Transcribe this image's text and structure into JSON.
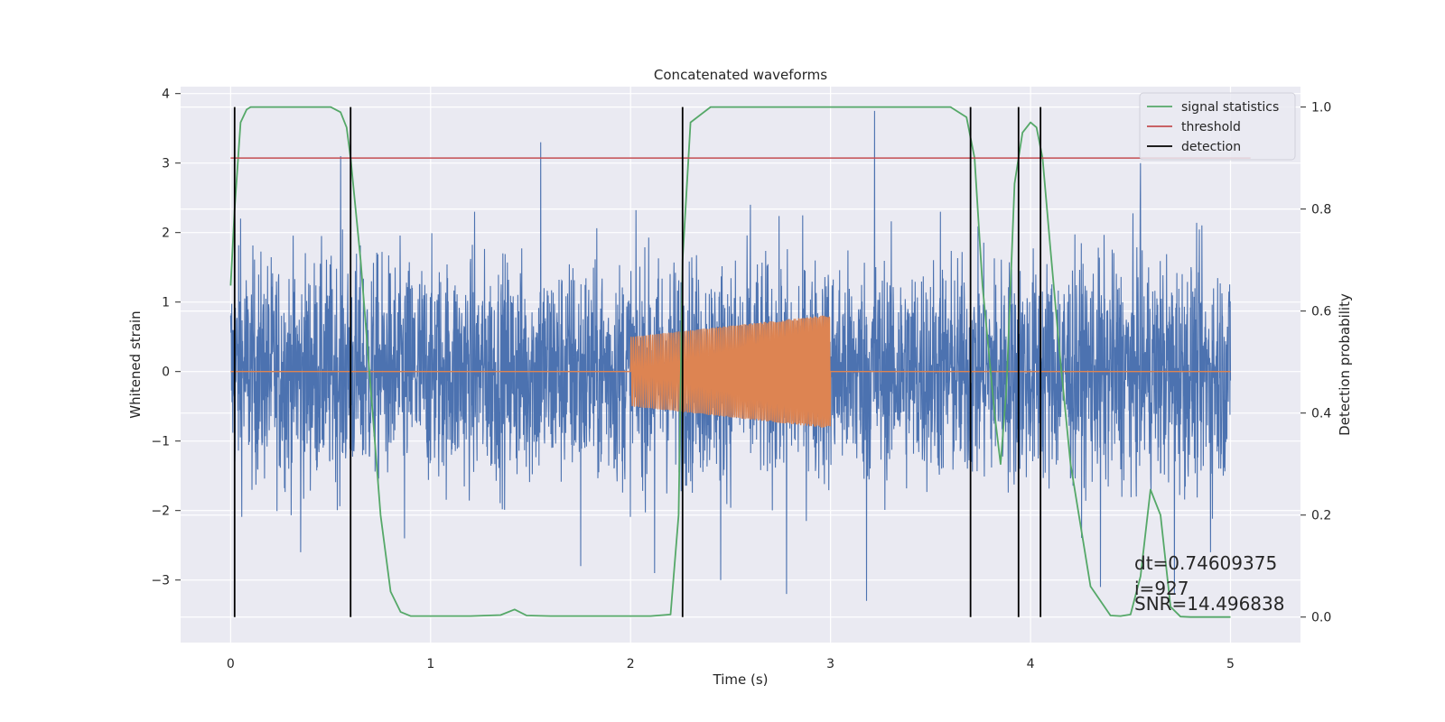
{
  "chart_data": {
    "type": "line",
    "title": "Concatenated waveforms",
    "xlabel": "Time (s)",
    "ylabel": "Whitened strain",
    "y2label": "Detection probability",
    "xlim": [
      -0.25,
      5.35
    ],
    "ylim": [
      -3.9,
      4.1
    ],
    "y2lim": [
      -0.05,
      1.04
    ],
    "xticks": [
      0,
      1,
      2,
      3,
      4,
      5
    ],
    "yticks": [
      -3,
      -2,
      -1,
      0,
      1,
      2,
      3,
      4
    ],
    "y2ticks": [
      0.0,
      0.2,
      0.4,
      0.6,
      0.8,
      1.0
    ],
    "grid": true,
    "legend": {
      "placement": "top-right",
      "entries": [
        "signal statistics",
        "threshold",
        "detection"
      ]
    },
    "colors": {
      "strain": "#4c72b0",
      "injection": "#dd8452",
      "signal": "#55a868",
      "threshold": "#c44e52",
      "detection": "#000000",
      "background": "#eaeaf2",
      "grid": "#ffffff"
    },
    "series": [
      {
        "name": "",
        "axis": "left",
        "kind": "noise",
        "x_range": [
          0,
          5
        ],
        "typical_amplitude": 1.3,
        "spikes": [
          {
            "x": 0.05,
            "y": 2.2
          },
          {
            "x": 0.35,
            "y": -2.6
          },
          {
            "x": 0.55,
            "y": 3.1
          },
          {
            "x": 0.87,
            "y": -2.4
          },
          {
            "x": 1.22,
            "y": 2.3
          },
          {
            "x": 1.55,
            "y": 3.3
          },
          {
            "x": 1.75,
            "y": -2.8
          },
          {
            "x": 2.12,
            "y": -2.9
          },
          {
            "x": 2.45,
            "y": -3.0
          },
          {
            "x": 2.6,
            "y": 2.4
          },
          {
            "x": 2.78,
            "y": -3.2
          },
          {
            "x": 3.22,
            "y": 3.75
          },
          {
            "x": 3.18,
            "y": -3.3
          },
          {
            "x": 3.55,
            "y": 2.3
          },
          {
            "x": 4.35,
            "y": -3.1
          },
          {
            "x": 4.55,
            "y": 3.0
          },
          {
            "x": 4.72,
            "y": -3.2
          },
          {
            "x": 4.9,
            "y": -2.6
          }
        ]
      },
      {
        "name": "",
        "axis": "left",
        "kind": "chirp",
        "x_range": [
          0,
          5
        ],
        "active_range": [
          2.0,
          3.0
        ],
        "amplitude_start": 0.5,
        "amplitude_end": 0.82
      },
      {
        "name": "signal statistics",
        "axis": "right",
        "x": [
          0,
          0.02,
          0.05,
          0.08,
          0.1,
          0.2,
          0.3,
          0.4,
          0.5,
          0.55,
          0.58,
          0.6,
          0.65,
          0.7,
          0.75,
          0.8,
          0.85,
          0.9,
          1.0,
          1.2,
          1.35,
          1.42,
          1.48,
          1.6,
          1.8,
          2.0,
          2.1,
          2.2,
          2.24,
          2.26,
          2.3,
          2.4,
          2.6,
          3.0,
          3.4,
          3.6,
          3.68,
          3.72,
          3.76,
          3.82,
          3.85,
          3.88,
          3.92,
          3.96,
          4.0,
          4.03,
          4.06,
          4.1,
          4.15,
          4.2,
          4.3,
          4.4,
          4.45,
          4.5,
          4.55,
          4.6,
          4.65,
          4.7,
          4.75,
          4.8,
          5.0
        ],
        "values": [
          0.65,
          0.8,
          0.97,
          0.995,
          1.0,
          1.0,
          1.0,
          1.0,
          1.0,
          0.99,
          0.96,
          0.9,
          0.7,
          0.45,
          0.2,
          0.05,
          0.01,
          0.002,
          0.002,
          0.002,
          0.004,
          0.015,
          0.003,
          0.002,
          0.002,
          0.002,
          0.002,
          0.005,
          0.2,
          0.7,
          0.97,
          1.0,
          1.0,
          1.0,
          1.0,
          1.0,
          0.98,
          0.9,
          0.65,
          0.4,
          0.3,
          0.45,
          0.85,
          0.95,
          0.97,
          0.96,
          0.9,
          0.72,
          0.5,
          0.3,
          0.06,
          0.003,
          0.002,
          0.005,
          0.08,
          0.25,
          0.2,
          0.02,
          0.001,
          0.0,
          0.0
        ]
      },
      {
        "name": "threshold",
        "axis": "right",
        "x": [
          0,
          5.1
        ],
        "values": [
          0.9,
          0.9
        ]
      },
      {
        "name": "detection",
        "axis": "right",
        "kind": "vlines",
        "x": [
          0.02,
          0.6,
          2.26,
          3.7,
          3.94,
          4.05
        ],
        "ymin": 0.0,
        "ymax": 1.0
      }
    ],
    "annotations": [
      "dt=0.74609375",
      " i=927",
      "SNR=14.496838"
    ]
  }
}
